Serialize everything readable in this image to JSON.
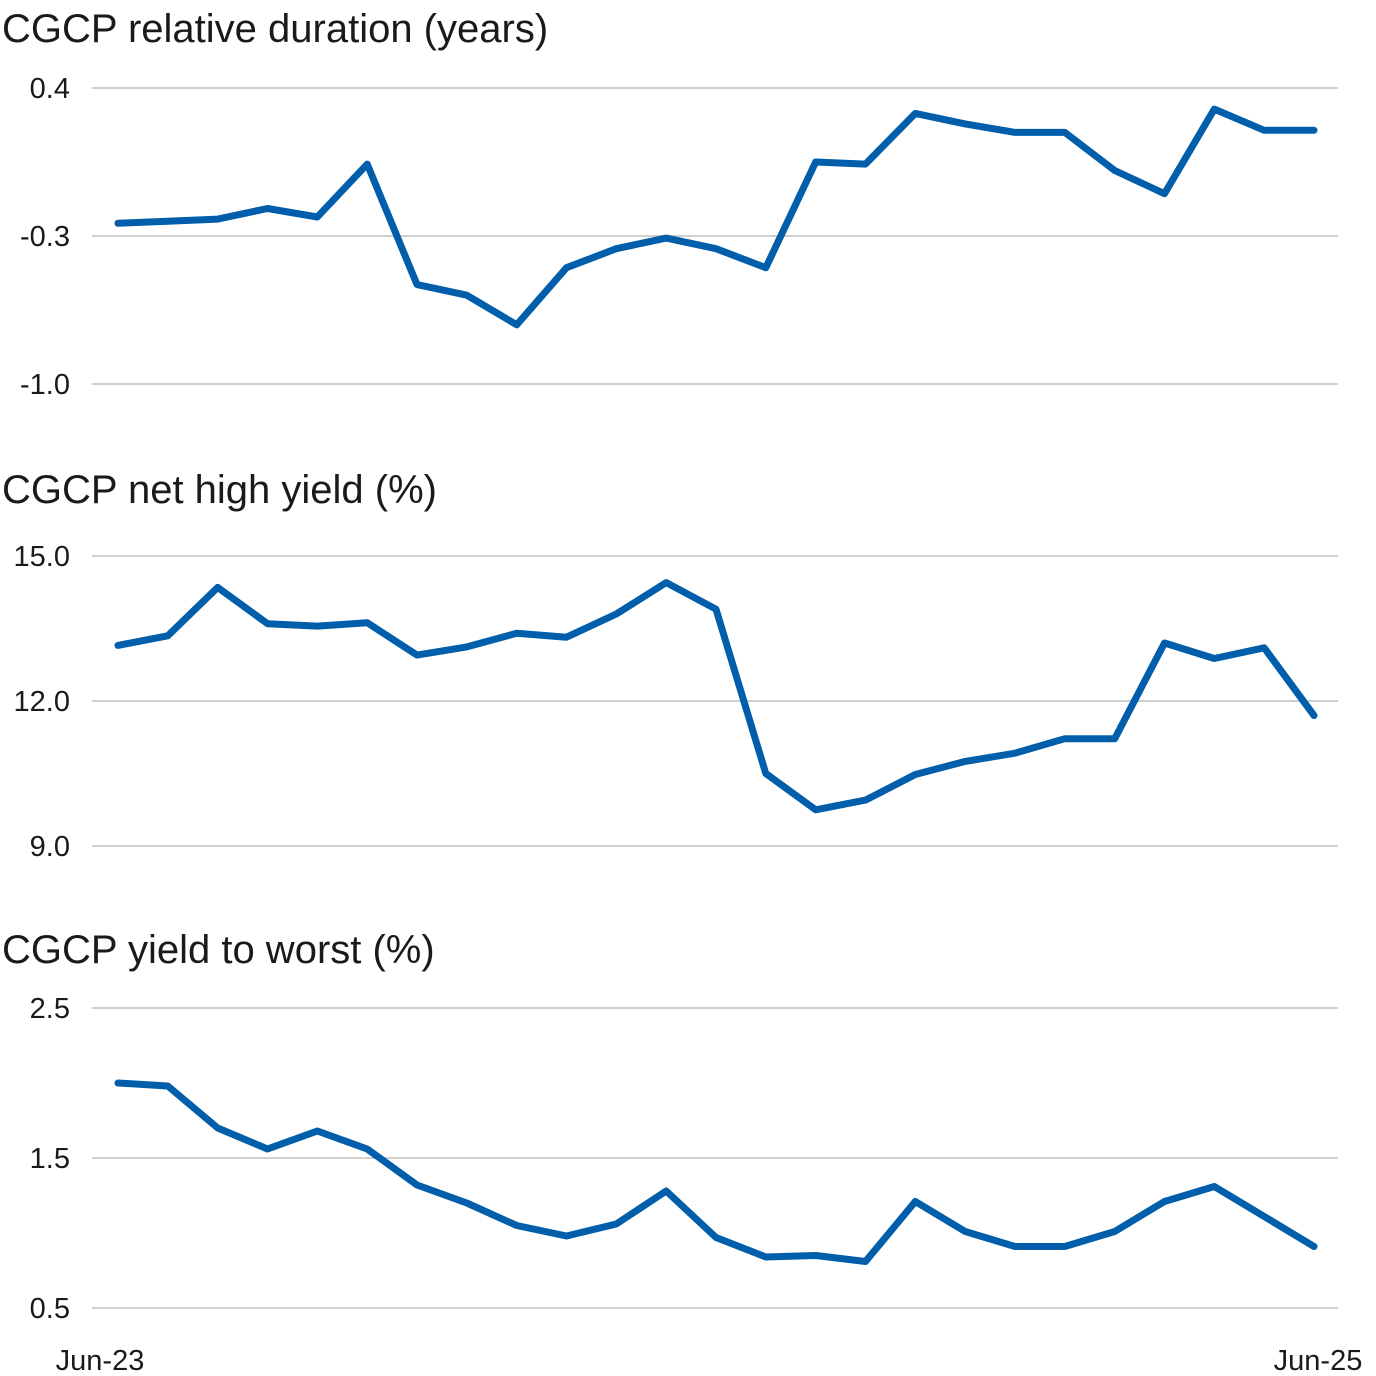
{
  "colors": {
    "series": "#005eaa",
    "grid": "#d0d0d0",
    "text": "#1a1a1a"
  },
  "x_axis": {
    "start_label": "Jun-23",
    "end_label": "Jun-25"
  },
  "chart_data": [
    {
      "type": "line",
      "title": "CGCP relative duration (years)",
      "ylim": [
        -1.0,
        0.4
      ],
      "yticks": [
        "0.4",
        "-0.3",
        "-1.0"
      ],
      "grid": true,
      "x": [
        "Jun-23",
        "Jul-23",
        "Aug-23",
        "Sep-23",
        "Oct-23",
        "Nov-23",
        "Dec-23",
        "Jan-24",
        "Feb-24",
        "Mar-24",
        "Apr-24",
        "May-24",
        "Jun-24",
        "Jul-24",
        "Aug-24",
        "Sep-24",
        "Oct-24",
        "Nov-24",
        "Dec-24",
        "Jan-25",
        "Feb-25",
        "Mar-25",
        "Apr-25",
        "May-25",
        "Jun-25"
      ],
      "series": [
        {
          "values": [
            -0.24,
            -0.23,
            -0.22,
            -0.17,
            -0.21,
            0.04,
            -0.53,
            -0.58,
            -0.72,
            -0.45,
            -0.36,
            -0.31,
            -0.36,
            -0.45,
            0.05,
            0.04,
            0.28,
            0.23,
            0.19,
            0.19,
            0.01,
            -0.1,
            0.3,
            0.2,
            0.2
          ]
        }
      ]
    },
    {
      "type": "line",
      "title": "CGCP net high yield (%)",
      "ylim": [
        9.0,
        15.0
      ],
      "yticks": [
        "15.0",
        "12.0",
        "9.0"
      ],
      "grid": true,
      "x": [
        "Jun-23",
        "Jul-23",
        "Aug-23",
        "Sep-23",
        "Oct-23",
        "Nov-23",
        "Dec-23",
        "Jan-24",
        "Feb-24",
        "Mar-24",
        "Apr-24",
        "May-24",
        "Jun-24",
        "Jul-24",
        "Aug-24",
        "Sep-24",
        "Oct-24",
        "Nov-24",
        "Dec-24",
        "Jan-25",
        "Feb-25",
        "Mar-25",
        "Apr-25",
        "May-25",
        "Jun-25"
      ],
      "series": [
        {
          "values": [
            13.15,
            13.35,
            14.35,
            13.6,
            13.55,
            13.62,
            12.95,
            13.12,
            13.4,
            13.32,
            13.8,
            14.45,
            13.9,
            10.5,
            9.75,
            9.95,
            10.48,
            10.75,
            10.92,
            11.22,
            11.22,
            13.2,
            12.88,
            13.1,
            11.7
          ]
        }
      ]
    },
    {
      "type": "line",
      "title": "CGCP yield to worst (%)",
      "ylim": [
        0.5,
        2.5
      ],
      "yticks": [
        "2.5",
        "1.5",
        "0.5"
      ],
      "grid": true,
      "x": [
        "Jun-23",
        "Jul-23",
        "Aug-23",
        "Sep-23",
        "Oct-23",
        "Nov-23",
        "Dec-23",
        "Jan-24",
        "Feb-24",
        "Mar-24",
        "Apr-24",
        "May-24",
        "Jun-24",
        "Jul-24",
        "Aug-24",
        "Sep-24",
        "Oct-24",
        "Nov-24",
        "Dec-24",
        "Jan-25",
        "Feb-25",
        "Mar-25",
        "Apr-25",
        "May-25",
        "Jun-25"
      ],
      "series": [
        {
          "values": [
            2.0,
            1.98,
            1.7,
            1.56,
            1.68,
            1.56,
            1.32,
            1.2,
            1.05,
            0.98,
            1.06,
            1.28,
            0.97,
            0.84,
            0.85,
            0.81,
            1.21,
            1.01,
            0.91,
            0.91,
            1.01,
            1.21,
            1.31,
            1.11,
            0.91
          ]
        }
      ]
    }
  ]
}
